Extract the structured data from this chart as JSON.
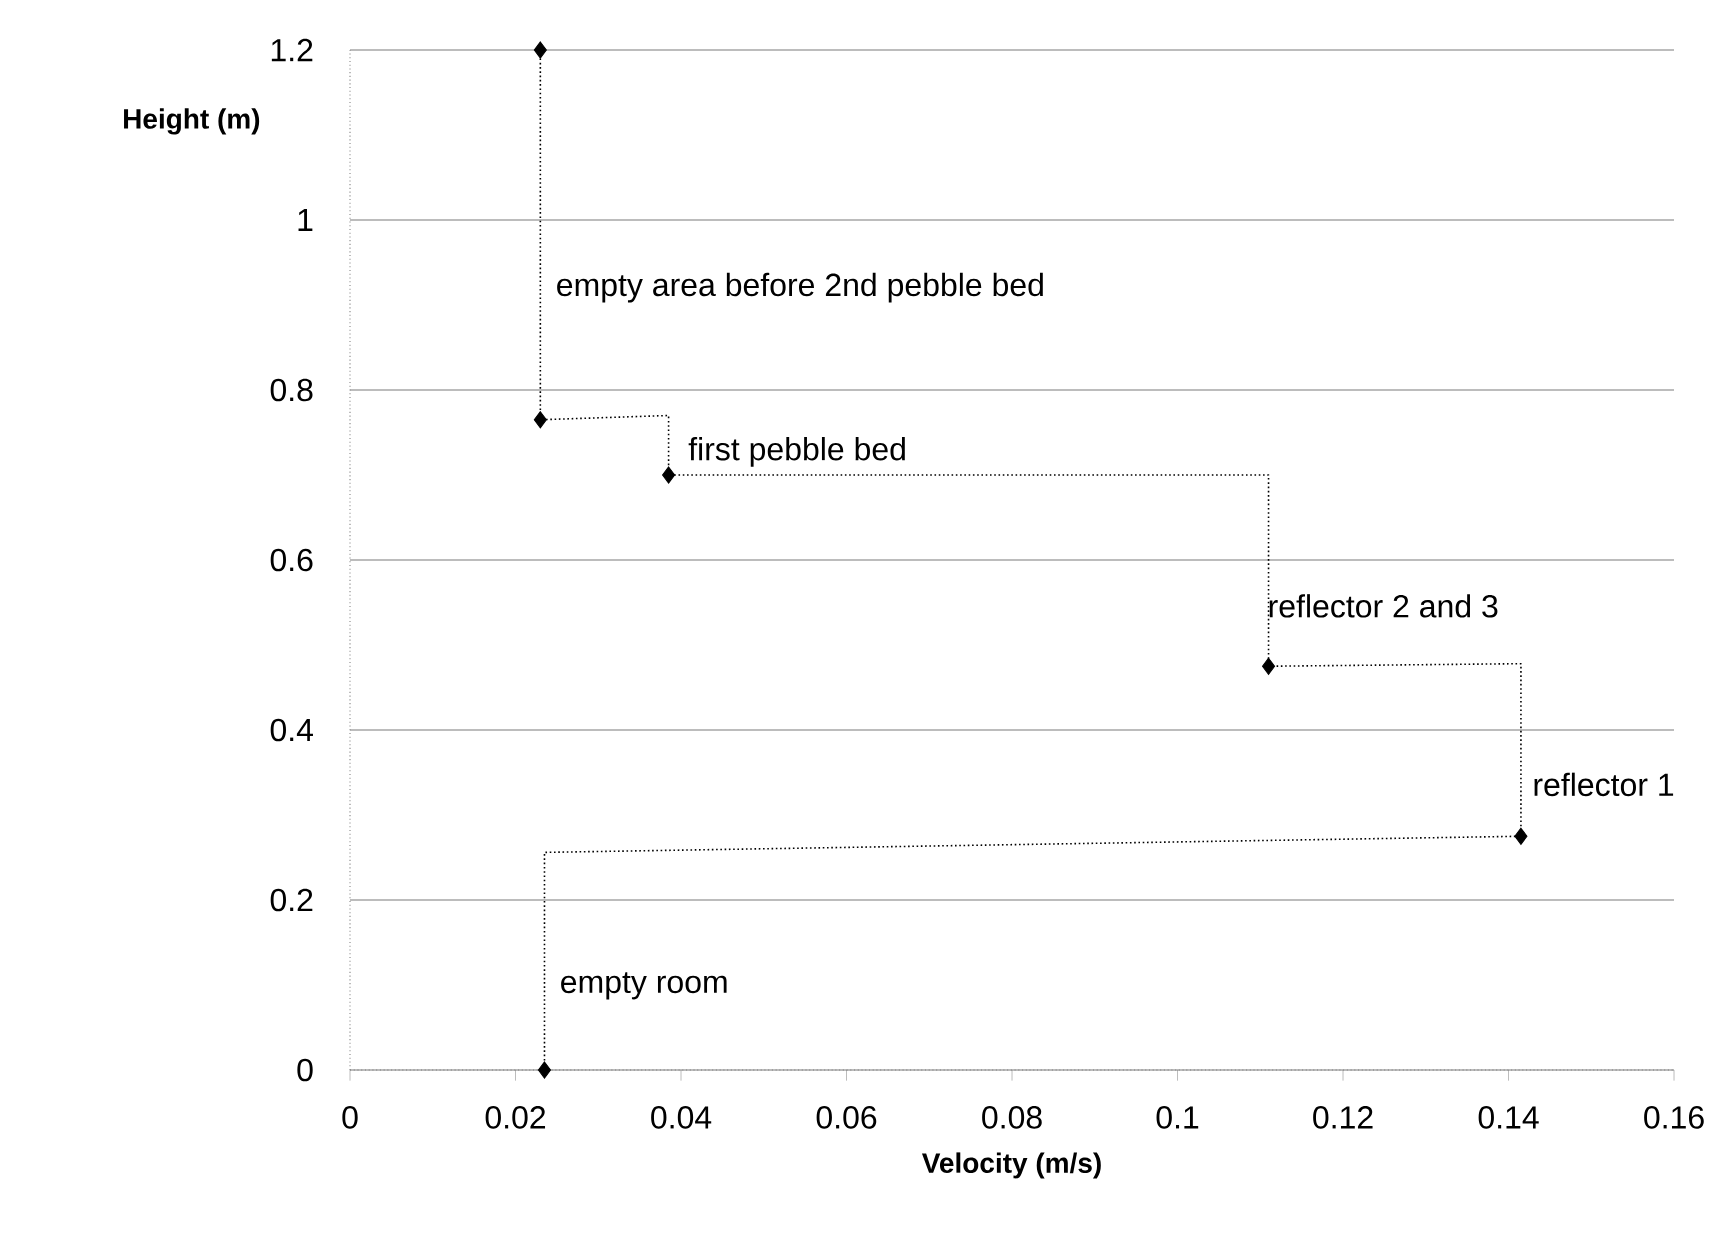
{
  "chart_data": {
    "type": "line",
    "xlabel": "Velocity (m/s)",
    "ylabel": "Height (m)",
    "xlim": [
      0,
      0.16
    ],
    "xticks": [
      0,
      0.02,
      0.04,
      0.06,
      0.08,
      0.1,
      0.12,
      0.14,
      0.16
    ],
    "ylim": [
      0,
      1.2
    ],
    "yticks": [
      0,
      0.2,
      0.4,
      0.6,
      0.8,
      1,
      1.2
    ],
    "grid": "y",
    "legend": false,
    "series": [
      {
        "type": "line",
        "color": "#000000",
        "marker": "none",
        "line_style": "dotted",
        "x": [
          0.023,
          0.023,
          0.0385,
          0.0385,
          0.111,
          0.111,
          0.1415,
          0.1415,
          0.0235,
          0.0235
        ],
        "values": [
          1.2,
          0.765,
          0.77,
          0.7,
          0.7,
          0.475,
          0.478,
          0.275,
          0.256,
          0
        ]
      },
      {
        "type": "scatter",
        "color": "#000000",
        "marker": "diamond",
        "x": [
          0.023,
          0.023,
          0.0385,
          0.111,
          0.1415,
          0.0235
        ],
        "values": [
          1.2,
          0.765,
          0.7,
          0.475,
          0.275,
          0
        ]
      }
    ],
    "annotations": [
      "empty area before 2nd pebble bed",
      "first pebble bed",
      {
        "text": "reflector 2 and 3",
        "x": 0.1105,
        "y": 0.546
      },
      {
        "text": "reflector 1",
        "x": 0.1425,
        "y": 0.336
      },
      "empty room"
    ]
  }
}
